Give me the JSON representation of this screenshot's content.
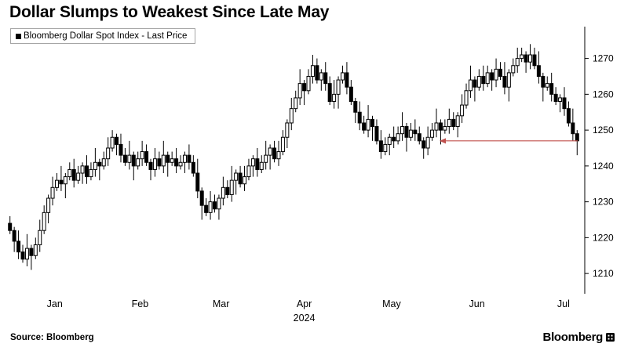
{
  "title": "Dollar Slumps to Weakest Since Late May",
  "legend": {
    "label": "Bloomberg Dollar Spot Index - Last Price"
  },
  "source": "Source: Bloomberg",
  "branding": {
    "logo_text": "Bloomberg"
  },
  "colors": {
    "background": "#ffffff",
    "text": "#000000",
    "axis": "#000000",
    "candle_up_fill": "#ffffff",
    "candle_down_fill": "#000000",
    "candle_stroke": "#000000",
    "annotation_arrow": "#c0504d",
    "legend_border": "#a6a6a6"
  },
  "chart_data": {
    "type": "candlestick",
    "title": "Dollar Slumps to Weakest Since Late May",
    "series_name": "Bloomberg Dollar Spot Index - Last Price",
    "grid": false,
    "legend_position": "top-left",
    "y_axis": {
      "side": "right",
      "ticks": [
        1210,
        1220,
        1230,
        1240,
        1250,
        1260,
        1270
      ],
      "min": 1205,
      "max": 1278
    },
    "x_axis": {
      "year_label": "2024",
      "year_label_index": 69.5,
      "months": [
        {
          "label": "Jan",
          "start_index": 0,
          "label_index": 11
        },
        {
          "label": "Feb",
          "start_index": 22,
          "label_index": 31
        },
        {
          "label": "Mar",
          "start_index": 43,
          "label_index": 50
        },
        {
          "label": "Apr",
          "start_index": 64,
          "label_index": 69.5
        },
        {
          "label": "May",
          "start_index": 86,
          "label_index": 90
        },
        {
          "label": "Jun",
          "start_index": 108,
          "label_index": 110
        },
        {
          "label": "Jul",
          "start_index": 129,
          "label_index": 130.3
        }
      ]
    },
    "annotation": {
      "type": "horizontal-arrow",
      "value": 1247,
      "start_index": 100,
      "direction": "left"
    },
    "last_price": 1247,
    "ohlc_format": [
      "open",
      "high",
      "low",
      "close"
    ],
    "ohlc": [
      [
        1224,
        1226,
        1221,
        1222
      ],
      [
        1222,
        1223,
        1216,
        1219
      ],
      [
        1219,
        1222,
        1214,
        1216
      ],
      [
        1216,
        1218,
        1213,
        1214
      ],
      [
        1214,
        1221,
        1212,
        1217
      ],
      [
        1217,
        1218,
        1211,
        1215
      ],
      [
        1215,
        1220,
        1214,
        1218
      ],
      [
        1218,
        1225,
        1216,
        1222
      ],
      [
        1222,
        1229,
        1221,
        1227
      ],
      [
        1227,
        1232,
        1224,
        1231
      ],
      [
        1231,
        1237,
        1229,
        1234
      ],
      [
        1234,
        1238,
        1233,
        1236
      ],
      [
        1236,
        1240,
        1233,
        1235
      ],
      [
        1235,
        1238,
        1231,
        1237
      ],
      [
        1237,
        1241,
        1236,
        1239
      ],
      [
        1239,
        1242,
        1234,
        1236
      ],
      [
        1236,
        1240,
        1235,
        1238
      ],
      [
        1238,
        1241,
        1235,
        1240
      ],
      [
        1240,
        1243,
        1235,
        1237
      ],
      [
        1237,
        1241,
        1236,
        1239
      ],
      [
        1239,
        1245,
        1237,
        1241
      ],
      [
        1241,
        1242,
        1236,
        1240
      ],
      [
        1240,
        1244,
        1239,
        1242
      ],
      [
        1242,
        1248,
        1240,
        1245
      ],
      [
        1245,
        1250,
        1244,
        1248
      ],
      [
        1248,
        1249,
        1243,
        1246
      ],
      [
        1246,
        1249,
        1241,
        1243
      ],
      [
        1243,
        1245,
        1240,
        1241
      ],
      [
        1241,
        1247,
        1239,
        1243
      ],
      [
        1243,
        1244,
        1236,
        1240
      ],
      [
        1240,
        1244,
        1239,
        1242
      ],
      [
        1242,
        1247,
        1240,
        1244
      ],
      [
        1244,
        1246,
        1240,
        1241
      ],
      [
        1241,
        1242,
        1236,
        1239
      ],
      [
        1239,
        1245,
        1237,
        1242
      ],
      [
        1242,
        1244,
        1239,
        1240
      ],
      [
        1240,
        1247,
        1238,
        1243
      ],
      [
        1243,
        1244,
        1237,
        1241
      ],
      [
        1241,
        1244,
        1240,
        1242
      ],
      [
        1242,
        1245,
        1238,
        1240
      ],
      [
        1240,
        1243,
        1239,
        1241
      ],
      [
        1241,
        1244,
        1238,
        1243
      ],
      [
        1243,
        1246,
        1239,
        1241
      ],
      [
        1241,
        1243,
        1237,
        1238
      ],
      [
        1238,
        1242,
        1231,
        1233
      ],
      [
        1233,
        1234,
        1225,
        1229
      ],
      [
        1229,
        1231,
        1226,
        1227
      ],
      [
        1227,
        1233,
        1225,
        1230
      ],
      [
        1230,
        1232,
        1227,
        1228
      ],
      [
        1228,
        1232,
        1225,
        1231
      ],
      [
        1231,
        1237,
        1229,
        1234
      ],
      [
        1234,
        1236,
        1231,
        1232
      ],
      [
        1232,
        1240,
        1230,
        1236
      ],
      [
        1236,
        1239,
        1232,
        1238
      ],
      [
        1238,
        1240,
        1234,
        1235
      ],
      [
        1235,
        1240,
        1233,
        1237
      ],
      [
        1237,
        1242,
        1236,
        1240
      ],
      [
        1240,
        1243,
        1237,
        1242
      ],
      [
        1242,
        1245,
        1237,
        1239
      ],
      [
        1239,
        1243,
        1238,
        1241
      ],
      [
        1241,
        1247,
        1239,
        1243
      ],
      [
        1243,
        1246,
        1239,
        1245
      ],
      [
        1245,
        1247,
        1241,
        1242
      ],
      [
        1242,
        1247,
        1240,
        1244
      ],
      [
        1244,
        1250,
        1243,
        1248
      ],
      [
        1248,
        1253,
        1245,
        1252
      ],
      [
        1252,
        1259,
        1250,
        1256
      ],
      [
        1256,
        1261,
        1255,
        1259
      ],
      [
        1259,
        1267,
        1257,
        1263
      ],
      [
        1263,
        1264,
        1257,
        1261
      ],
      [
        1261,
        1267,
        1260,
        1265
      ],
      [
        1265,
        1271,
        1263,
        1268
      ],
      [
        1268,
        1270,
        1263,
        1264
      ],
      [
        1264,
        1267,
        1261,
        1266
      ],
      [
        1266,
        1269,
        1261,
        1263
      ],
      [
        1263,
        1265,
        1257,
        1258
      ],
      [
        1258,
        1264,
        1256,
        1260
      ],
      [
        1260,
        1265,
        1256,
        1264
      ],
      [
        1264,
        1268,
        1263,
        1266
      ],
      [
        1266,
        1269,
        1260,
        1262
      ],
      [
        1262,
        1264,
        1257,
        1258
      ],
      [
        1258,
        1259,
        1252,
        1255
      ],
      [
        1255,
        1258,
        1250,
        1252
      ],
      [
        1252,
        1254,
        1249,
        1250
      ],
      [
        1250,
        1257,
        1248,
        1253
      ],
      [
        1253,
        1254,
        1247,
        1251
      ],
      [
        1251,
        1253,
        1246,
        1247
      ],
      [
        1247,
        1250,
        1242,
        1244
      ],
      [
        1244,
        1248,
        1243,
        1246
      ],
      [
        1246,
        1249,
        1243,
        1248
      ],
      [
        1248,
        1251,
        1245,
        1247
      ],
      [
        1247,
        1251,
        1246,
        1249
      ],
      [
        1249,
        1255,
        1247,
        1251
      ],
      [
        1251,
        1252,
        1244,
        1248
      ],
      [
        1248,
        1252,
        1247,
        1250
      ],
      [
        1250,
        1253,
        1247,
        1249
      ],
      [
        1249,
        1251,
        1246,
        1247
      ],
      [
        1247,
        1248,
        1242,
        1245
      ],
      [
        1245,
        1251,
        1243,
        1248
      ],
      [
        1248,
        1252,
        1247,
        1250
      ],
      [
        1250,
        1256,
        1248,
        1252
      ],
      [
        1252,
        1253,
        1246,
        1250
      ],
      [
        1250,
        1253,
        1249,
        1251
      ],
      [
        1251,
        1256,
        1249,
        1253
      ],
      [
        1253,
        1255,
        1250,
        1251
      ],
      [
        1251,
        1255,
        1248,
        1254
      ],
      [
        1254,
        1260,
        1252,
        1257
      ],
      [
        1257,
        1263,
        1256,
        1261
      ],
      [
        1261,
        1268,
        1259,
        1264
      ],
      [
        1264,
        1265,
        1258,
        1262
      ],
      [
        1262,
        1267,
        1261,
        1265
      ],
      [
        1265,
        1268,
        1261,
        1263
      ],
      [
        1263,
        1268,
        1262,
        1266
      ],
      [
        1266,
        1267,
        1261,
        1264
      ],
      [
        1264,
        1270,
        1262,
        1267
      ],
      [
        1267,
        1269,
        1264,
        1265
      ],
      [
        1265,
        1269,
        1260,
        1262
      ],
      [
        1262,
        1267,
        1258,
        1266
      ],
      [
        1266,
        1270,
        1265,
        1268
      ],
      [
        1268,
        1273,
        1266,
        1270
      ],
      [
        1270,
        1273,
        1269,
        1271
      ],
      [
        1271,
        1272,
        1266,
        1269
      ],
      [
        1269,
        1274,
        1267,
        1271
      ],
      [
        1271,
        1273,
        1267,
        1268
      ],
      [
        1268,
        1272,
        1263,
        1265
      ],
      [
        1265,
        1266,
        1258,
        1262
      ],
      [
        1262,
        1265,
        1261,
        1263
      ],
      [
        1263,
        1266,
        1258,
        1260
      ],
      [
        1260,
        1262,
        1257,
        1258
      ],
      [
        1258,
        1260,
        1255,
        1259
      ],
      [
        1259,
        1262,
        1254,
        1256
      ],
      [
        1256,
        1258,
        1251,
        1252
      ],
      [
        1252,
        1256,
        1247,
        1249
      ],
      [
        1249,
        1250,
        1243,
        1247
      ]
    ]
  }
}
